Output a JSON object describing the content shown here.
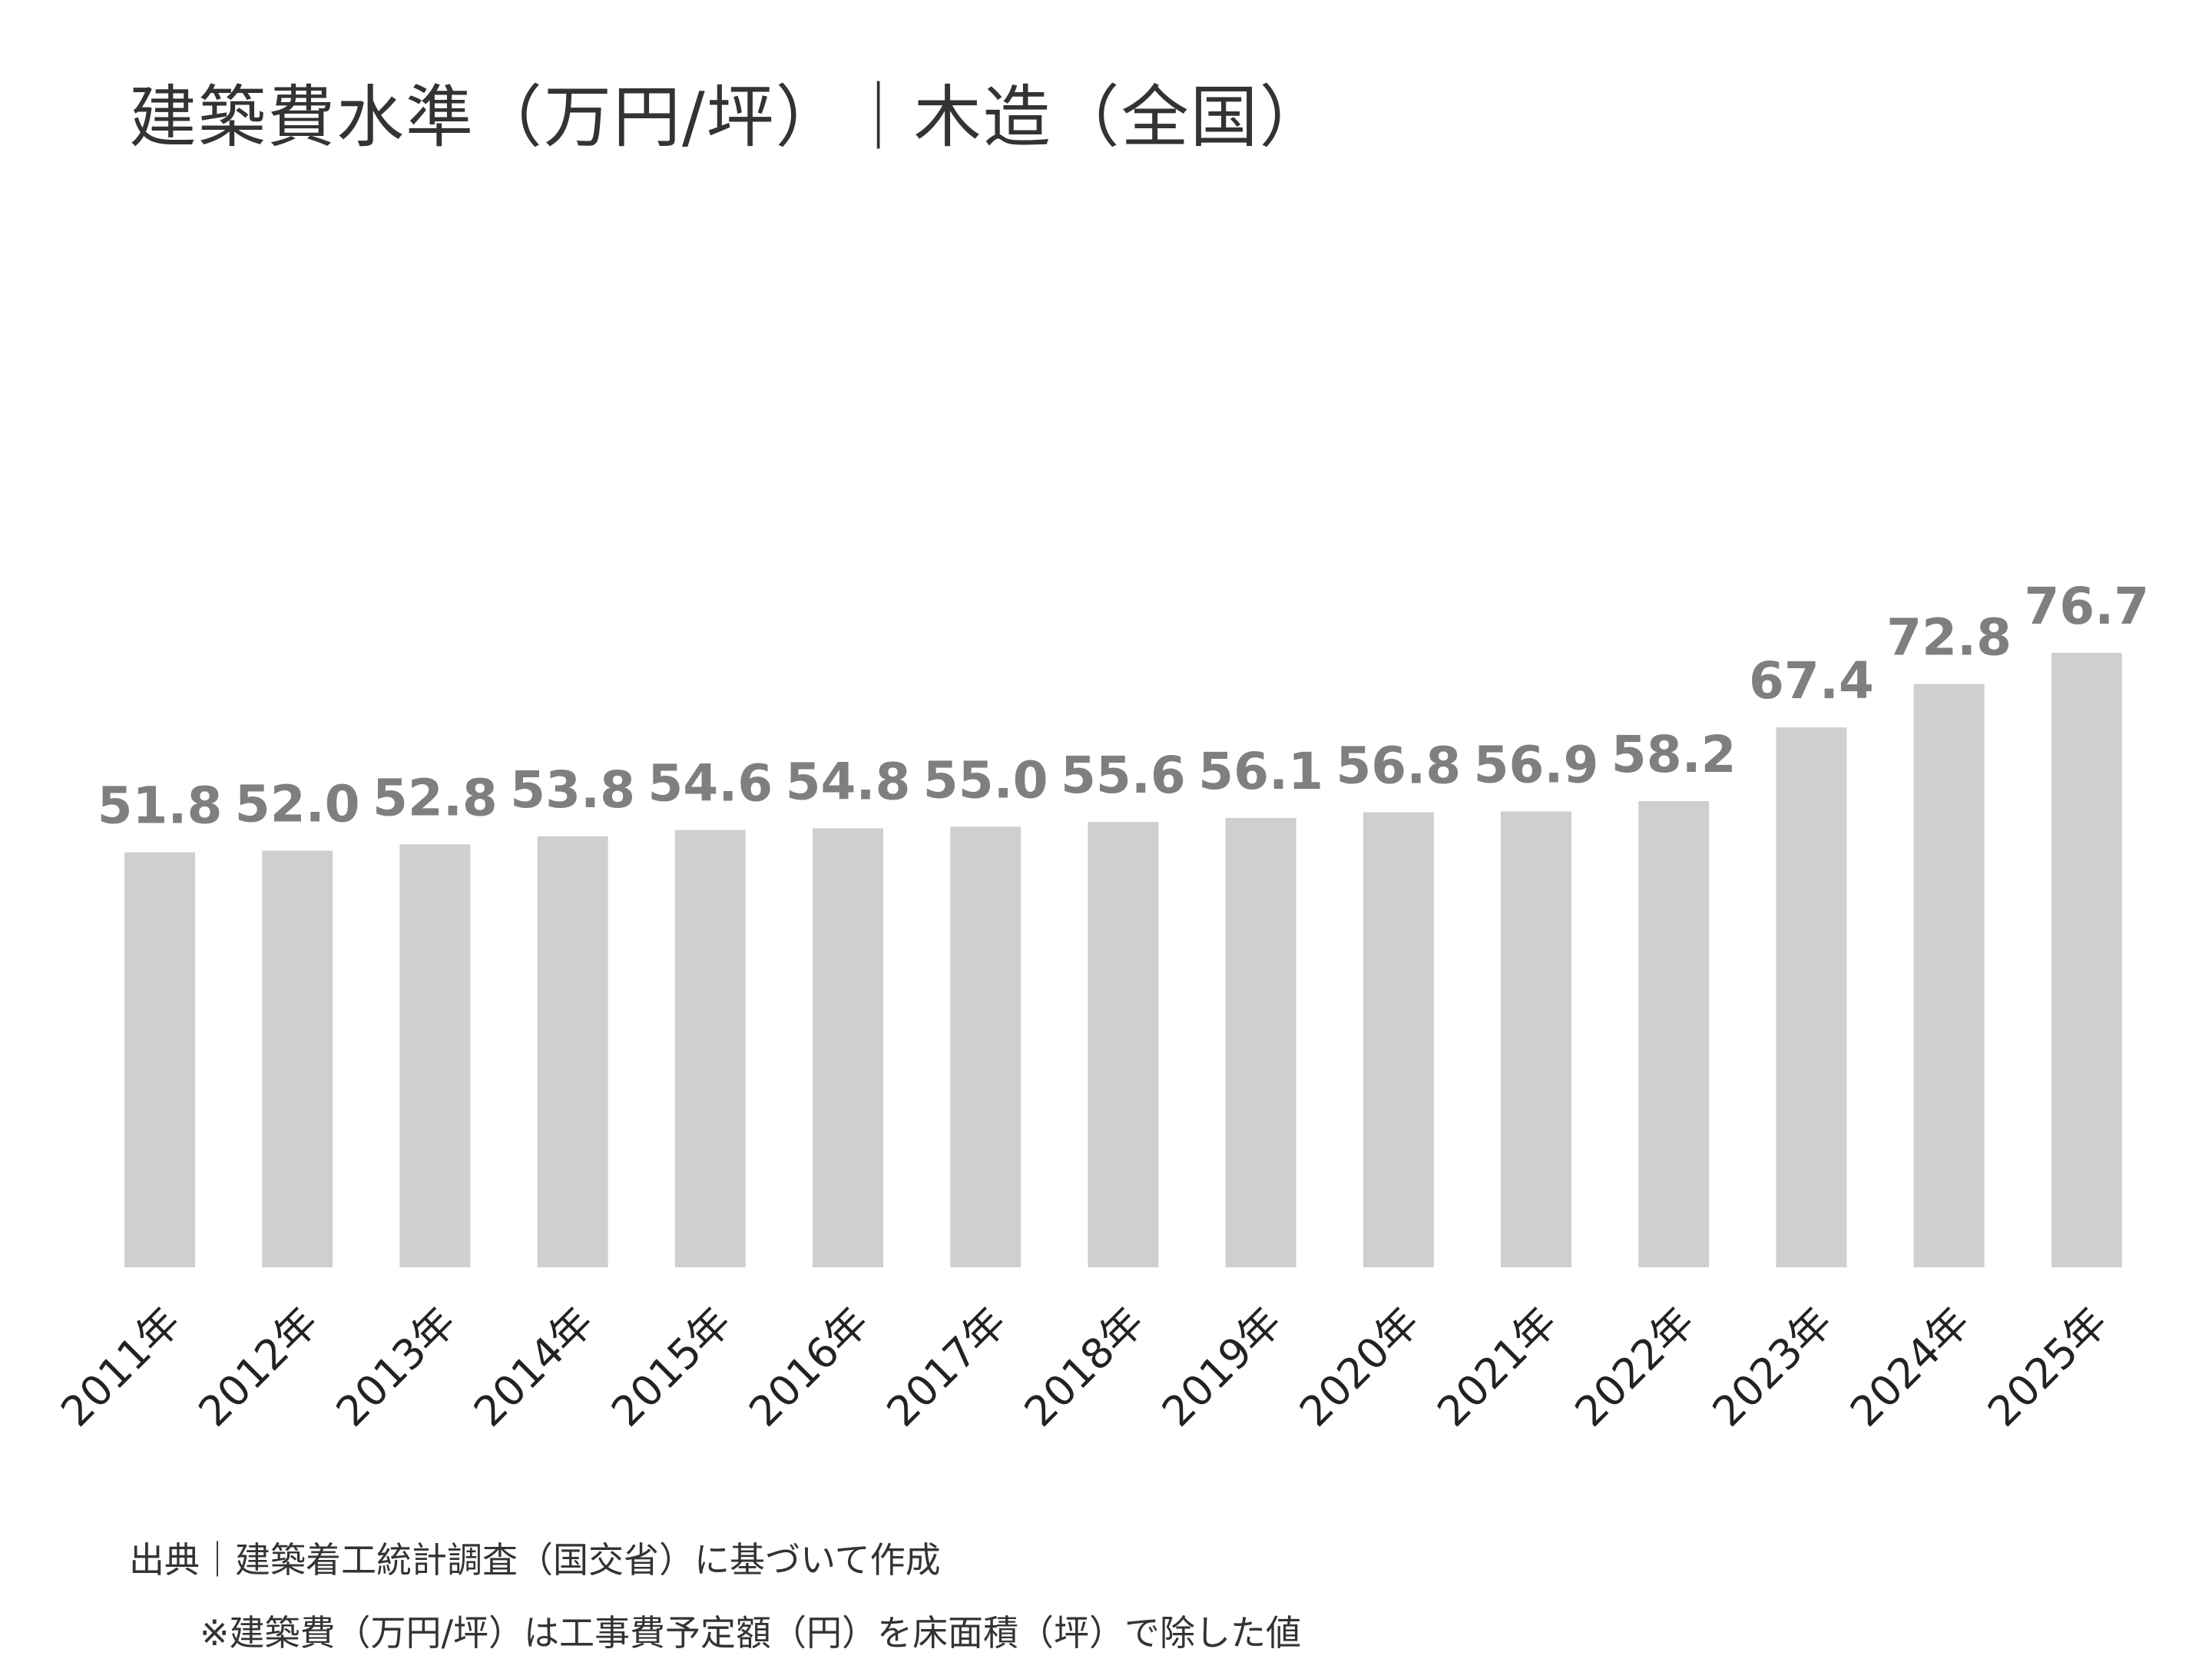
{
  "chart_data": {
    "type": "bar",
    "title": "建築費水準（万円/坪）｜木造（全国）",
    "categories": [
      "2011年",
      "2012年",
      "2013年",
      "2014年",
      "2015年",
      "2016年",
      "2017年",
      "2018年",
      "2019年",
      "2020年",
      "2021年",
      "2022年",
      "2023年",
      "2024年",
      "2025年"
    ],
    "values": [
      51.8,
      52.0,
      52.8,
      53.8,
      54.6,
      54.8,
      55.0,
      55.6,
      56.1,
      56.8,
      56.9,
      58.2,
      67.4,
      72.8,
      76.7
    ],
    "ylim": [
      0,
      100
    ],
    "grid": false,
    "legend": "none",
    "bar_color": "#d0cfd0",
    "label_color": "#7f7f7f"
  },
  "footer": {
    "source": "出典｜建築着工統計調査（国交省）に基づいて作成",
    "note": "※建築費（万円/坪）は工事費予定額（円）を床面積（坪）で除した値"
  }
}
